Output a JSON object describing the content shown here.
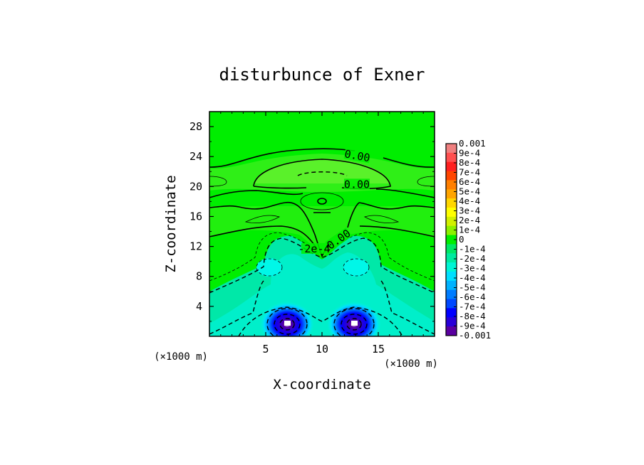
{
  "chart_data": {
    "type": "heatmap",
    "title": "disturbunce of Exner",
    "xlabel": "X-coordinate",
    "ylabel": "Z-coordinate",
    "x_unit": "(×1000 m)",
    "y_unit": "(×1000 m)",
    "xlim": [
      0,
      20
    ],
    "ylim": [
      0,
      30
    ],
    "x_ticks": [
      5,
      10,
      15
    ],
    "y_ticks": [
      4,
      8,
      12,
      16,
      20,
      24,
      28
    ],
    "colorbar": {
      "min": -0.001,
      "max": 0.001,
      "labels": [
        "0.001",
        "9e-4",
        "8e-4",
        "7e-4",
        "6e-4",
        "5e-4",
        "4e-4",
        "3e-4",
        "2e-4",
        "1e-4",
        "0",
        "-1e-4",
        "-2e-4",
        "-3e-4",
        "-4e-4",
        "-5e-4",
        "-6e-4",
        "-7e-4",
        "-8e-4",
        "-9e-4",
        "-0.001"
      ],
      "colors": [
        "#f08080",
        "#ff5050",
        "#ff2020",
        "#ff4500",
        "#ff7f00",
        "#ffa500",
        "#ffd700",
        "#ffff00",
        "#d2f000",
        "#8cf000",
        "#00ee00",
        "#00e865",
        "#00eba0",
        "#00f5d5",
        "#00dfff",
        "#00b2ff",
        "#007cff",
        "#0048ff",
        "#0000ff",
        "#2800d8",
        "#5a00a0"
      ]
    },
    "contour_labels": [
      {
        "text": "0.00",
        "x": 13.1,
        "z": 23.8
      },
      {
        "text": "0.00",
        "x": 13.1,
        "z": 20.0
      },
      {
        "text": "0.00",
        "x": 11.6,
        "z": 12.7
      },
      {
        "text": "-2e-4",
        "x": 9.3,
        "z": 11.4
      }
    ]
  }
}
